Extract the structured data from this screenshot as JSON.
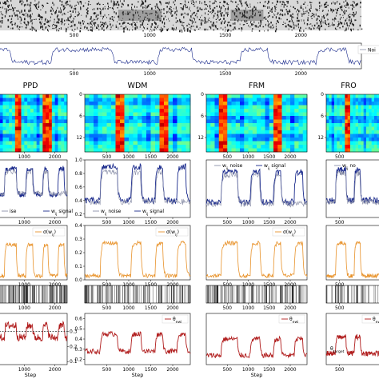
{
  "colors": {
    "signal": "#1a2a8c",
    "noise": "#8a8fa8",
    "sigma": "#e8922a",
    "theta": "#b01c1c",
    "target_line": "#333333",
    "frame": "#000000"
  },
  "top_strip": {
    "ticks": [
      "500",
      "1000",
      "1500",
      "2000"
    ],
    "tick_values": [
      500,
      1000,
      1500,
      2000
    ],
    "xlim": [
      0,
      2400
    ]
  },
  "top_trace": {
    "ticks": [
      "500",
      "1000",
      "1500",
      "2000"
    ],
    "tick_values": [
      500,
      1000,
      1500,
      2000
    ],
    "xlim": [
      0,
      2400
    ],
    "legend_partial": "Noi",
    "high_intervals": [
      [
        0,
        80
      ],
      [
        350,
        750
      ],
      [
        1050,
        1280
      ],
      [
        1600,
        1780
      ],
      [
        2100,
        2300
      ]
    ]
  },
  "chart_data": [
    {
      "type": "heatmap",
      "panel": "PPD",
      "title": "PPD",
      "xticks": [
        "1000",
        "2000"
      ],
      "xtick_values": [
        1000,
        2000
      ],
      "yticks": [
        "0",
        "6",
        "12"
      ],
      "ytick_values": [
        0,
        6,
        12
      ],
      "xlim": [
        0,
        2400
      ],
      "ylim": [
        0,
        16
      ],
      "colormap": "jet",
      "hot_columns": [
        [
          700,
          900
        ],
        [
          1600,
          1850
        ]
      ]
    },
    {
      "type": "heatmap",
      "panel": "WDM",
      "title": "WDM",
      "xticks": [
        "500",
        "1000",
        "1500",
        "2000"
      ],
      "xtick_values": [
        500,
        1000,
        1500,
        2000
      ],
      "yticks": [
        "0",
        "6",
        "12"
      ],
      "ytick_values": [
        0,
        6,
        12
      ],
      "xlim": [
        0,
        2400
      ],
      "ylim": [
        0,
        16
      ],
      "colormap": "jet",
      "hot_columns": [
        [
          700,
          900
        ],
        [
          1700,
          1900
        ]
      ]
    },
    {
      "type": "heatmap",
      "panel": "FRM",
      "title": "FRM",
      "xticks": [
        "500",
        "1000",
        "1500",
        "2000"
      ],
      "xtick_values": [
        500,
        1000,
        1500,
        2000
      ],
      "yticks": [
        "0",
        "6",
        "12"
      ],
      "ytick_values": [
        0,
        6,
        12
      ],
      "xlim": [
        0,
        2400
      ],
      "ylim": [
        0,
        16
      ],
      "colormap": "jet",
      "hot_columns": [
        [
          300,
          500
        ],
        [
          1600,
          1800
        ]
      ]
    },
    {
      "type": "heatmap",
      "panel": "FRO",
      "title": "FRO",
      "xticks": [
        "500"
      ],
      "xtick_values": [
        500
      ],
      "yticks": [
        "0",
        "6",
        "12"
      ],
      "ytick_values": [
        0,
        6,
        12
      ],
      "xlim": [
        0,
        2400
      ],
      "ylim": [
        0,
        16
      ],
      "colormap": "jet",
      "hot_columns": [
        [
          700,
          900
        ]
      ]
    },
    {
      "type": "line",
      "panel": "PPD",
      "row": "weights",
      "xticks": [
        "1000",
        "2000"
      ],
      "xtick_values": [
        1000,
        2000
      ],
      "yticks": [],
      "ytick_values": [],
      "xlim": [
        0,
        2400
      ],
      "ylim": [
        0,
        1.0
      ],
      "legend": [
        "ise",
        "w_{ij} signal"
      ],
      "legend_position": "bottom",
      "series": [
        {
          "name": "w_{ij} signal",
          "base": 0.4,
          "high": 0.85,
          "intervals": [
            [
              350,
              750
            ],
            [
              1050,
              1280
            ],
            [
              1600,
              1780
            ],
            [
              2100,
              2300
            ]
          ]
        },
        {
          "name": "w_{ij} noise",
          "base": 0.42,
          "high": 0.8,
          "intervals": [
            [
              360,
              740
            ],
            [
              1060,
              1270
            ],
            [
              1610,
              1770
            ]
          ]
        }
      ]
    },
    {
      "type": "line",
      "panel": "WDM",
      "row": "weights",
      "xticks": [
        "500",
        "1000",
        "1500",
        "2000"
      ],
      "xtick_values": [
        500,
        1000,
        1500,
        2000
      ],
      "yticks": [
        "0.2",
        "0.4",
        "0.6",
        "0.8",
        "1.0"
      ],
      "ytick_values": [
        0.2,
        0.4,
        0.6,
        0.8,
        1.0
      ],
      "xlim": [
        0,
        2400
      ],
      "ylim": [
        0.15,
        1.0
      ],
      "legend": [
        "w_{ij} noise",
        "w_{ij} signal"
      ],
      "legend_position": "bottom",
      "series": [
        {
          "name": "w_{ij} signal",
          "base": 0.4,
          "high": 0.9,
          "intervals": [
            [
              350,
              750
            ],
            [
              1050,
              1280
            ],
            [
              1600,
              1780
            ],
            [
              2100,
              2300
            ]
          ]
        },
        {
          "name": "w_{ij} noise",
          "base": 0.38,
          "high": 0.82,
          "intervals": [
            [
              360,
              740
            ],
            [
              1060,
              1270
            ],
            [
              1610,
              1770
            ]
          ]
        }
      ]
    },
    {
      "type": "line",
      "panel": "FRM",
      "row": "weights",
      "xticks": [
        "500",
        "1000",
        "1500",
        "2000"
      ],
      "xtick_values": [
        500,
        1000,
        1500,
        2000
      ],
      "yticks": [],
      "ytick_values": [],
      "xlim": [
        0,
        2400
      ],
      "ylim": [
        0.15,
        1.0
      ],
      "legend": [
        "w_{ij} noise",
        "w_{ij} signal"
      ],
      "legend_position": "top",
      "series": [
        {
          "name": "w_{ij} signal",
          "base": 0.38,
          "high": 0.82,
          "intervals": [
            [
              350,
              750
            ],
            [
              1050,
              1280
            ],
            [
              1600,
              1780
            ],
            [
              2100,
              2300
            ]
          ]
        },
        {
          "name": "w_{ij} noise",
          "base": 0.35,
          "high": 0.78,
          "intervals": [
            [
              360,
              740
            ],
            [
              1060,
              1270
            ],
            [
              1610,
              1770
            ]
          ]
        }
      ]
    },
    {
      "type": "line",
      "panel": "FRO",
      "row": "weights",
      "xticks": [
        "500"
      ],
      "xtick_values": [
        500
      ],
      "yticks": [],
      "ytick_values": [],
      "xlim": [
        0,
        2400
      ],
      "ylim": [
        0.15,
        1.0
      ],
      "legend": [
        "w_{ij} no"
      ],
      "legend_position": "top",
      "series": [
        {
          "name": "w_{ij} signal",
          "base": 0.4,
          "high": 0.85,
          "intervals": [
            [
              350,
              750
            ],
            [
              1050,
              1280
            ]
          ]
        },
        {
          "name": "w_{ij} noise",
          "base": 0.38,
          "high": 0.8,
          "intervals": [
            [
              360,
              740
            ],
            [
              1060,
              1270
            ]
          ]
        }
      ]
    },
    {
      "type": "line",
      "panel": "PPD",
      "row": "sigma",
      "xticks": [
        "1000",
        "2000"
      ],
      "xtick_values": [
        1000,
        2000
      ],
      "yticks": [],
      "ytick_values": [],
      "xlim": [
        0,
        2400
      ],
      "ylim": [
        0,
        0.4
      ],
      "legend": [
        "σ(w_{ij})"
      ],
      "legend_position": "top-right",
      "series": [
        {
          "name": "σ(w_{ij})",
          "base": 0.03,
          "high": 0.26,
          "intervals": [
            [
              350,
              750
            ],
            [
              1050,
              1280
            ],
            [
              1600,
              1780
            ],
            [
              2100,
              2300
            ]
          ]
        }
      ]
    },
    {
      "type": "line",
      "panel": "WDM",
      "row": "sigma",
      "xticks": [
        "500",
        "1000",
        "1500",
        "2000"
      ],
      "xtick_values": [
        500,
        1000,
        1500,
        2000
      ],
      "yticks": [
        "0.0",
        "0.1",
        "0.2",
        "0.3",
        "0.4"
      ],
      "ytick_values": [
        0.0,
        0.1,
        0.2,
        0.3,
        0.4
      ],
      "xlim": [
        0,
        2400
      ],
      "ylim": [
        0,
        0.4
      ],
      "legend": [
        "σ(w_{ij})"
      ],
      "legend_position": "top-right",
      "series": [
        {
          "name": "σ(w_{ij})",
          "base": 0.03,
          "high": 0.27,
          "intervals": [
            [
              350,
              750
            ],
            [
              1050,
              1280
            ],
            [
              1600,
              1780
            ],
            [
              2100,
              2300
            ]
          ]
        }
      ]
    },
    {
      "type": "line",
      "panel": "FRM",
      "row": "sigma",
      "xticks": [
        "500",
        "1000",
        "1500",
        "2000"
      ],
      "xtick_values": [
        500,
        1000,
        1500,
        2000
      ],
      "yticks": [],
      "ytick_values": [],
      "xlim": [
        0,
        2400
      ],
      "ylim": [
        0,
        0.4
      ],
      "legend": [
        "σ(w_{ij})"
      ],
      "legend_position": "top-right",
      "series": [
        {
          "name": "σ(w_{ij})",
          "base": 0.03,
          "high": 0.27,
          "intervals": [
            [
              350,
              750
            ],
            [
              1050,
              1280
            ],
            [
              1600,
              1780
            ],
            [
              2100,
              2300
            ]
          ]
        }
      ]
    },
    {
      "type": "line",
      "panel": "FRO",
      "row": "sigma",
      "xticks": [
        "500"
      ],
      "xtick_values": [
        500
      ],
      "yticks": [],
      "ytick_values": [],
      "xlim": [
        0,
        2400
      ],
      "ylim": [
        0,
        0.4
      ],
      "legend": [],
      "legend_position": "top-right",
      "series": [
        {
          "name": "σ(w_{ij})",
          "base": 0.03,
          "high": 0.27,
          "intervals": [
            [
              350,
              750
            ],
            [
              1050,
              1280
            ]
          ]
        }
      ]
    },
    {
      "type": "scatter",
      "panel": "PPD",
      "row": "events",
      "xticks": [
        "1000",
        "2000"
      ],
      "xtick_values": [
        1000,
        2000
      ],
      "xlim": [
        0,
        2400
      ],
      "event_count": 120
    },
    {
      "type": "scatter",
      "panel": "WDM",
      "row": "events",
      "xticks": [
        "500",
        "1000",
        "1500",
        "2000"
      ],
      "xtick_values": [
        500,
        1000,
        1500,
        2000
      ],
      "xlim": [
        0,
        2400
      ],
      "event_count": 120
    },
    {
      "type": "scatter",
      "panel": "FRM",
      "row": "events",
      "xticks": [
        "500",
        "1000",
        "1500",
        "2000"
      ],
      "xtick_values": [
        500,
        1000,
        1500,
        2000
      ],
      "xlim": [
        0,
        2400
      ],
      "event_count": 120
    },
    {
      "type": "scatter",
      "panel": "FRO",
      "row": "events",
      "xticks": [
        "500"
      ],
      "xtick_values": [
        500
      ],
      "xlim": [
        0,
        2400
      ],
      "event_count": 60
    },
    {
      "type": "line",
      "panel": "PPD",
      "row": "theta",
      "xlabel": "Step",
      "xticks": [
        "0",
        "1000",
        "2000"
      ],
      "xtick_values": [
        0,
        1000,
        2000
      ],
      "yticks": [
        "0.1",
        "0.2",
        "0.3"
      ],
      "ytick_values": [
        0.1,
        0.2,
        0.3
      ],
      "ytick_side": "right",
      "xlim": [
        0,
        2400
      ],
      "ylim": [
        0.08,
        0.42
      ],
      "target": 0.3,
      "series": [
        {
          "name": "θ_{ewi}",
          "base": 0.26,
          "high": 0.34,
          "intervals": [
            [
              350,
              750
            ],
            [
              1050,
              1280
            ],
            [
              1600,
              1780
            ],
            [
              2100,
              2300
            ]
          ]
        }
      ]
    },
    {
      "type": "line",
      "panel": "WDM",
      "row": "theta",
      "xlabel": "Step",
      "xticks": [
        "500",
        "1000",
        "1500",
        "2000"
      ],
      "xtick_values": [
        500,
        1000,
        1500,
        2000
      ],
      "yticks": [
        "0.2",
        "0.3",
        "0.4",
        "0.5",
        "0.6"
      ],
      "ytick_values": [
        0.2,
        0.3,
        0.4,
        0.5,
        0.6
      ],
      "ytick_side": "left",
      "xlim": [
        0,
        2400
      ],
      "ylim": [
        0.15,
        0.65
      ],
      "legend": [
        "θ_{ewi}"
      ],
      "legend_position": "top-right",
      "series": [
        {
          "name": "θ_{ewi}",
          "base": 0.28,
          "high": 0.45,
          "intervals": [
            [
              350,
              750
            ],
            [
              1050,
              1280
            ],
            [
              1600,
              1780
            ],
            [
              2100,
              2300
            ]
          ]
        }
      ]
    },
    {
      "type": "line",
      "panel": "FRM",
      "row": "theta",
      "xlabel": "Step",
      "xticks": [
        "500",
        "1000",
        "1500",
        "2000"
      ],
      "xtick_values": [
        500,
        1000,
        1500,
        2000
      ],
      "yticks": [],
      "ytick_values": [],
      "xlim": [
        0,
        2400
      ],
      "ylim": [
        0.15,
        0.65
      ],
      "legend": [
        "θ_{ewi}"
      ],
      "legend_position": "top-right",
      "series": [
        {
          "name": "θ_{ewi}",
          "base": 0.24,
          "high": 0.4,
          "intervals": [
            [
              350,
              750
            ],
            [
              1050,
              1280
            ],
            [
              1600,
              1780
            ],
            [
              2100,
              2300
            ]
          ]
        }
      ]
    },
    {
      "type": "line",
      "panel": "FRO",
      "row": "theta",
      "xlabel": "",
      "xticks": [
        "500"
      ],
      "xtick_values": [
        500
      ],
      "yticks": [],
      "ytick_values": [],
      "xlim": [
        0,
        2400
      ],
      "ylim": [
        0.15,
        0.65
      ],
      "legend": [
        "θ_{ewi}"
      ],
      "legend_position": "top-right",
      "annotation": "θ_{target}",
      "series": [
        {
          "name": "θ_{ewi}",
          "base": 0.26,
          "high": 0.42,
          "intervals": [
            [
              350,
              750
            ],
            [
              1050,
              1280
            ]
          ]
        }
      ]
    }
  ]
}
